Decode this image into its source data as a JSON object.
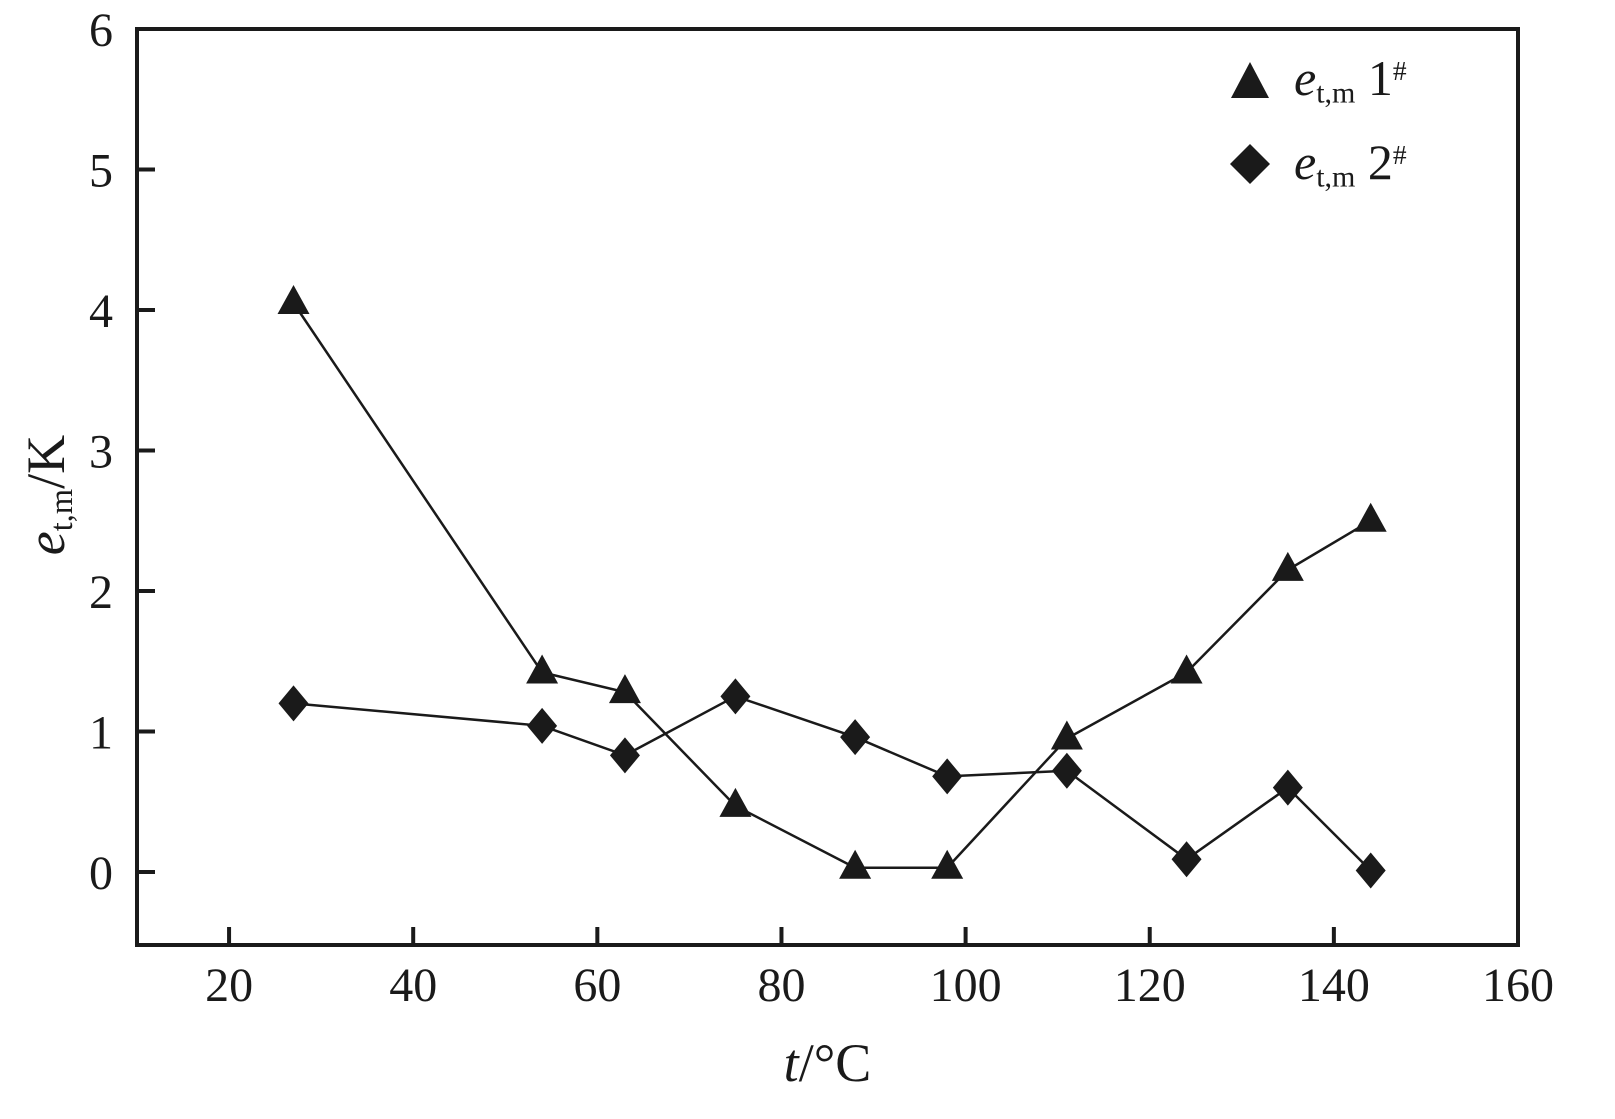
{
  "chart_data": {
    "type": "line",
    "title": "",
    "xlabel_parts": {
      "base": "t",
      "rest": "/°C"
    },
    "ylabel_parts": {
      "base": "e",
      "sub": "t,m",
      "rest": "/K"
    },
    "xlim": [
      10,
      160
    ],
    "ylim": [
      -0.52,
      6
    ],
    "xticks": [
      20,
      40,
      60,
      80,
      100,
      120,
      140,
      160
    ],
    "yticks": [
      0,
      1,
      2,
      3,
      4,
      5,
      6
    ],
    "grid": false,
    "legend_position": "top-right",
    "line_color": "#1a1a1a",
    "background_color": "#ffffff",
    "series": [
      {
        "name": "e_t,m 1#",
        "marker": "triangle",
        "legend": {
          "base": "e",
          "sub": "t,m",
          "num": " 1",
          "sup": "#"
        },
        "x": [
          27,
          54,
          63,
          75,
          88,
          98,
          111,
          124,
          135,
          144
        ],
        "y": [
          4.05,
          1.42,
          1.28,
          0.47,
          0.03,
          0.03,
          0.95,
          1.42,
          2.15,
          2.5
        ]
      },
      {
        "name": "e_t,m 2#",
        "marker": "diamond",
        "legend": {
          "base": "e",
          "sub": "t,m",
          "num": " 2",
          "sup": "#"
        },
        "x": [
          27,
          54,
          63,
          75,
          88,
          98,
          111,
          124,
          135,
          144
        ],
        "y": [
          1.2,
          1.04,
          0.83,
          1.25,
          0.96,
          0.68,
          0.72,
          0.09,
          0.6,
          0.01
        ]
      }
    ]
  }
}
